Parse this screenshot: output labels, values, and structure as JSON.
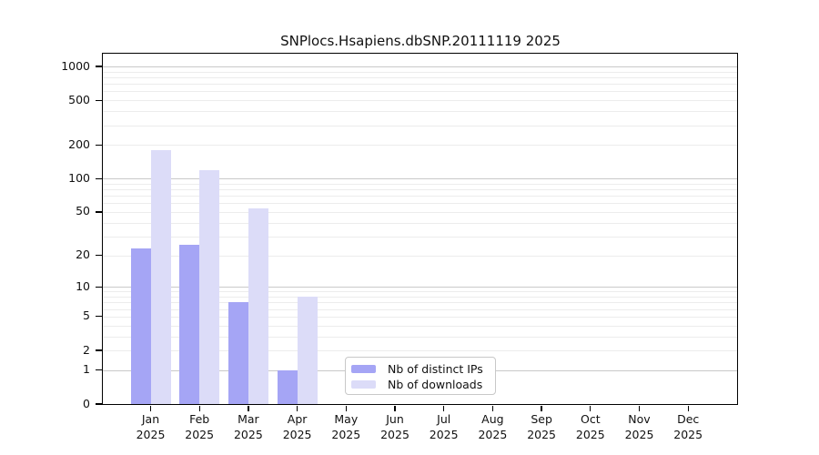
{
  "header": {
    "title": "SNPlocs.Hsapiens.dbSNP.20111119 2025"
  },
  "chart_data": {
    "type": "bar",
    "title": "SNPlocs.Hsapiens.dbSNP.20111119 2025",
    "scale": "log1p",
    "grid": {
      "on": true,
      "major_values": [
        1,
        10,
        100,
        1000
      ],
      "minor_values": [
        2,
        3,
        4,
        5,
        6,
        7,
        8,
        9,
        20,
        30,
        40,
        50,
        60,
        70,
        80,
        90,
        200,
        300,
        400,
        500,
        600,
        700,
        800,
        900
      ],
      "major_color": "#c9c9c9",
      "minor_color": "#ececec"
    },
    "ylim": [
      0,
      1300
    ],
    "yticks": [
      0,
      1,
      2,
      5,
      10,
      20,
      50,
      100,
      200,
      500,
      1000
    ],
    "categories": [
      {
        "month": "Jan",
        "year": "2025"
      },
      {
        "month": "Feb",
        "year": "2025"
      },
      {
        "month": "Mar",
        "year": "2025"
      },
      {
        "month": "Apr",
        "year": "2025"
      },
      {
        "month": "May",
        "year": "2025"
      },
      {
        "month": "Jun",
        "year": "2025"
      },
      {
        "month": "Jul",
        "year": "2025"
      },
      {
        "month": "Aug",
        "year": "2025"
      },
      {
        "month": "Sep",
        "year": "2025"
      },
      {
        "month": "Oct",
        "year": "2025"
      },
      {
        "month": "Nov",
        "year": "2025"
      },
      {
        "month": "Dec",
        "year": "2025"
      }
    ],
    "series": [
      {
        "name": "Nb of distinct IPs",
        "color": "#a5a5f5",
        "values": [
          23,
          25,
          7,
          1,
          0,
          0,
          0,
          0,
          0,
          0,
          0,
          0
        ]
      },
      {
        "name": "Nb of downloads",
        "color": "#dcdcf8",
        "values": [
          180,
          120,
          54,
          8,
          0,
          0,
          0,
          0,
          0,
          0,
          0,
          0
        ]
      }
    ],
    "legend": {
      "position": "inside-bottom-center"
    }
  }
}
